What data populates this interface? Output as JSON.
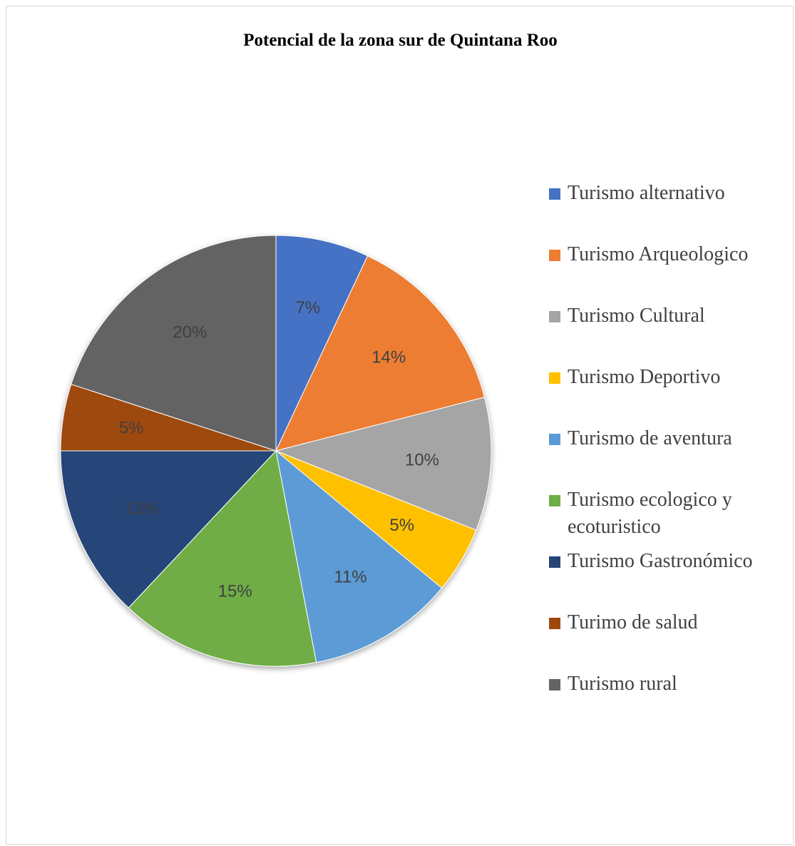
{
  "chart_data": {
    "type": "pie",
    "title": "Potencial de la zona sur de Quintana Roo",
    "categories": [
      "Turismo alternativo",
      "Turismo Arqueologico",
      "Turismo Cultural",
      "Turismo Deportivo",
      "Turismo de aventura",
      "Turismo ecologico y ecoturistico",
      "Turismo Gastronómico",
      "Turimo de salud",
      "Turismo rural"
    ],
    "values": [
      7,
      14,
      10,
      5,
      11,
      15,
      13,
      5,
      20
    ],
    "labels": [
      "7%",
      "14%",
      "10%",
      "5%",
      "11%",
      "15%",
      "13%",
      "5%",
      "20%"
    ],
    "colors": [
      "#4472C4",
      "#ED7D31",
      "#A5A5A5",
      "#FFC000",
      "#5B9BD5",
      "#70AD47",
      "#264478",
      "#9E480E",
      "#636363"
    ],
    "legend_position": "right"
  }
}
